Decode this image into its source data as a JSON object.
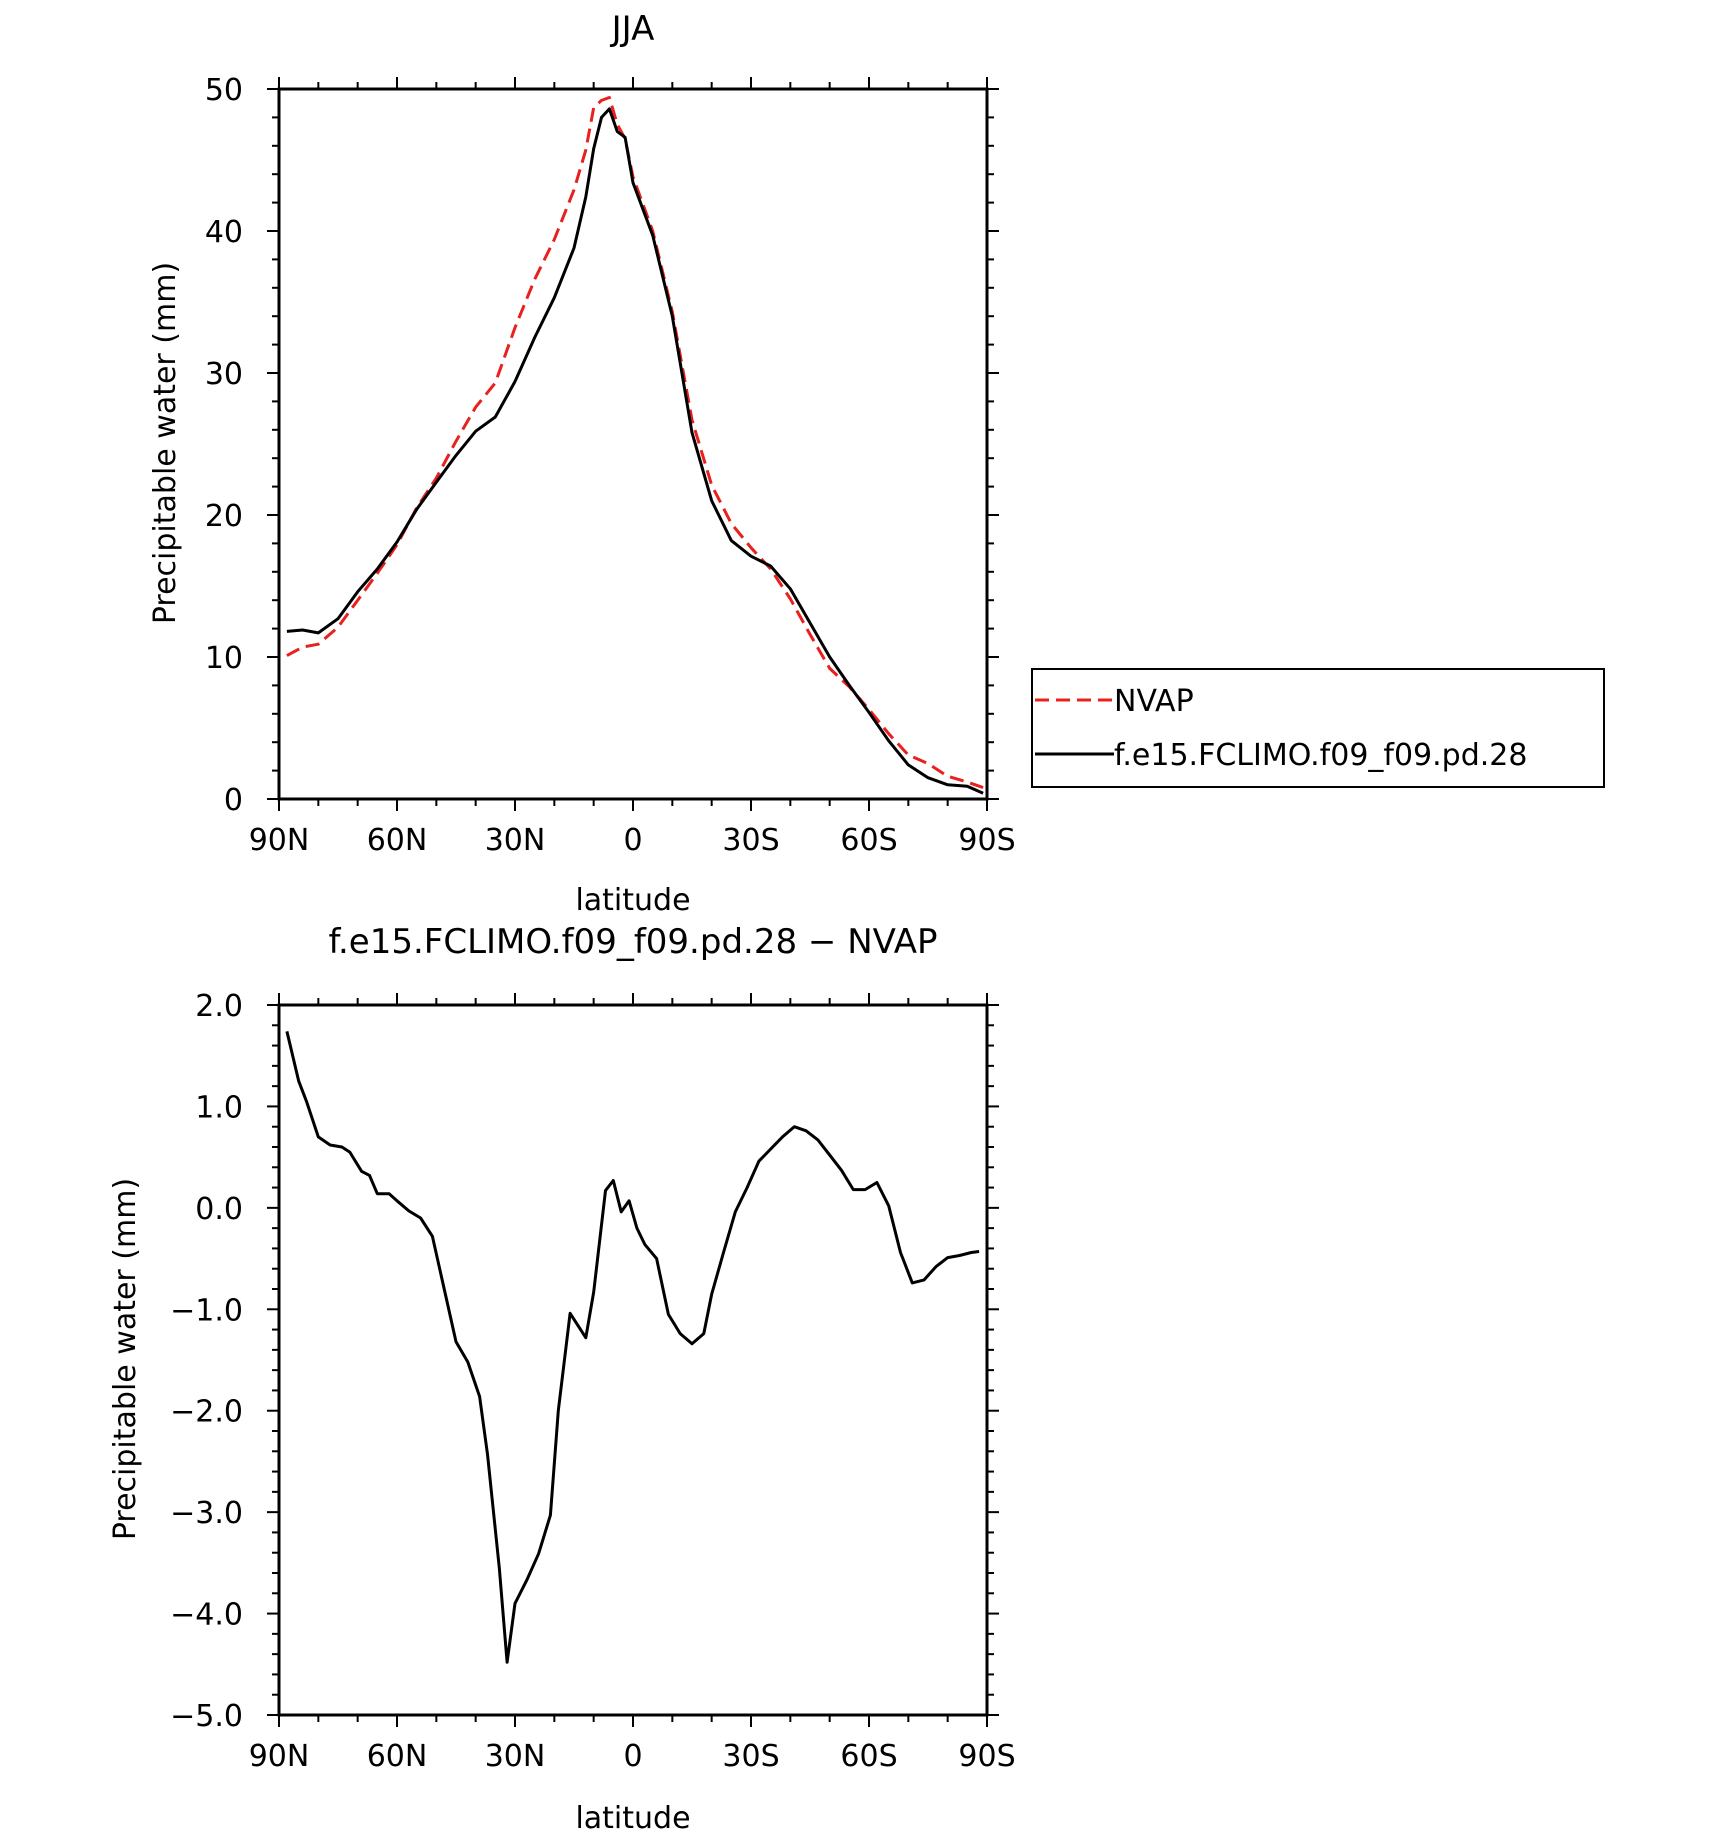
{
  "chart_data": [
    {
      "type": "line",
      "title": "JJA",
      "xlabel": "latitude",
      "ylabel": "Precipitable water (mm)",
      "xticklabels": [
        "90N",
        "60N",
        "30N",
        "0",
        "30S",
        "60S",
        "90S"
      ],
      "xticks": [
        90,
        60,
        30,
        0,
        -30,
        -60,
        -90
      ],
      "xlim": [
        90,
        -90
      ],
      "yticklabels": [
        "0",
        "10",
        "20",
        "30",
        "40",
        "50"
      ],
      "yticks": [
        0,
        10,
        20,
        30,
        40,
        50
      ],
      "ylim": [
        0,
        50
      ],
      "legend": {
        "placement": "right",
        "entries": [
          "NVAP",
          "f.e15.FCLIMO.f09_f09.pd.28"
        ]
      },
      "series": [
        {
          "name": "NVAP",
          "color": "#e8201e",
          "dash": true,
          "x": [
            88,
            84,
            80,
            75,
            70,
            65,
            60,
            55,
            50,
            45,
            40,
            35,
            30,
            25,
            20,
            15,
            12,
            10,
            8,
            6,
            4,
            2,
            0,
            -5,
            -10,
            -15,
            -20,
            -25,
            -30,
            -35,
            -40,
            -45,
            -50,
            -55,
            -60,
            -65,
            -70,
            -75,
            -80,
            -85,
            -89
          ],
          "y": [
            10.1,
            10.7,
            10.9,
            12.1,
            14.0,
            15.9,
            17.9,
            20.5,
            22.6,
            25.2,
            27.6,
            29.3,
            33.2,
            36.6,
            39.4,
            42.9,
            45.7,
            48.7,
            49.2,
            49.4,
            47.5,
            46.5,
            43.8,
            40.0,
            34.3,
            26.7,
            22.1,
            19.4,
            17.7,
            16.2,
            14.1,
            11.6,
            9.2,
            7.9,
            6.3,
            4.6,
            3.1,
            2.5,
            1.6,
            1.2,
            0.8
          ]
        },
        {
          "name": "f.e15.FCLIMO.f09_f09.pd.28",
          "color": "#000000",
          "dash": false,
          "x": [
            88,
            84,
            80,
            75,
            70,
            65,
            60,
            55,
            50,
            45,
            40,
            35,
            30,
            25,
            20,
            15,
            12,
            10,
            8,
            6,
            4,
            2,
            0,
            -5,
            -10,
            -15,
            -20,
            -25,
            -30,
            -35,
            -40,
            -45,
            -50,
            -55,
            -60,
            -65,
            -70,
            -75,
            -80,
            -85,
            -89
          ],
          "y": [
            11.8,
            11.9,
            11.7,
            12.7,
            14.6,
            16.2,
            18.1,
            20.4,
            22.3,
            24.2,
            25.9,
            26.9,
            29.4,
            32.5,
            35.3,
            38.8,
            42.4,
            45.8,
            48.0,
            48.6,
            47.0,
            46.6,
            43.4,
            39.7,
            34.0,
            25.8,
            21.0,
            18.2,
            17.1,
            16.4,
            14.8,
            12.4,
            10.0,
            8.0,
            6.1,
            4.1,
            2.4,
            1.5,
            1.0,
            0.9,
            0.4
          ]
        }
      ]
    },
    {
      "type": "line",
      "title": "f.e15.FCLIMO.f09_f09.pd.28 − NVAP",
      "xlabel": "latitude",
      "ylabel": "Precipitable water (mm)",
      "xticklabels": [
        "90N",
        "60N",
        "30N",
        "0",
        "30S",
        "60S",
        "90S"
      ],
      "xticks": [
        90,
        60,
        30,
        0,
        -30,
        -60,
        -90
      ],
      "xlim": [
        90,
        -90
      ],
      "yticklabels": [
        "−5.0",
        "−4.0",
        "−3.0",
        "−2.0",
        "−1.0",
        "0.0",
        "1.0",
        "2.0"
      ],
      "yticks": [
        -5,
        -4,
        -3,
        -2,
        -1,
        0,
        1,
        2
      ],
      "ylim": [
        -5,
        2
      ],
      "series": [
        {
          "color": "#000000",
          "dash": false,
          "x": [
            88,
            85,
            83,
            80,
            77,
            74,
            72,
            69,
            67,
            65,
            62,
            60,
            57,
            54,
            51,
            48,
            45,
            42,
            39,
            37,
            34,
            32,
            30,
            27,
            24,
            21,
            19,
            16,
            12,
            10,
            7,
            5,
            3,
            1,
            -1,
            -3,
            -6,
            -9,
            -12,
            -15,
            -18,
            -20,
            -23,
            -26,
            -29,
            -32,
            -35,
            -38,
            -41,
            -44,
            -47,
            -50,
            -53,
            -56,
            -59,
            -62,
            -65,
            -68,
            -71,
            -74,
            -77,
            -80,
            -83,
            -86,
            -88
          ],
          "y": [
            1.74,
            1.25,
            1.05,
            0.7,
            0.62,
            0.6,
            0.55,
            0.36,
            0.32,
            0.14,
            0.14,
            0.07,
            -0.03,
            -0.1,
            -0.28,
            -0.8,
            -1.32,
            -1.52,
            -1.86,
            -2.43,
            -3.55,
            -4.48,
            -3.9,
            -3.67,
            -3.41,
            -3.03,
            -2.0,
            -1.04,
            -1.28,
            -0.83,
            0.17,
            0.27,
            -0.04,
            0.07,
            -0.2,
            -0.36,
            -0.5,
            -1.05,
            -1.24,
            -1.34,
            -1.24,
            -0.85,
            -0.44,
            -0.04,
            0.2,
            0.46,
            0.58,
            0.7,
            0.8,
            0.76,
            0.67,
            0.52,
            0.37,
            0.18,
            0.18,
            0.25,
            0.02,
            -0.44,
            -0.74,
            -0.71,
            -0.58,
            -0.49,
            -0.47,
            -0.44,
            -0.43
          ]
        }
      ]
    }
  ]
}
